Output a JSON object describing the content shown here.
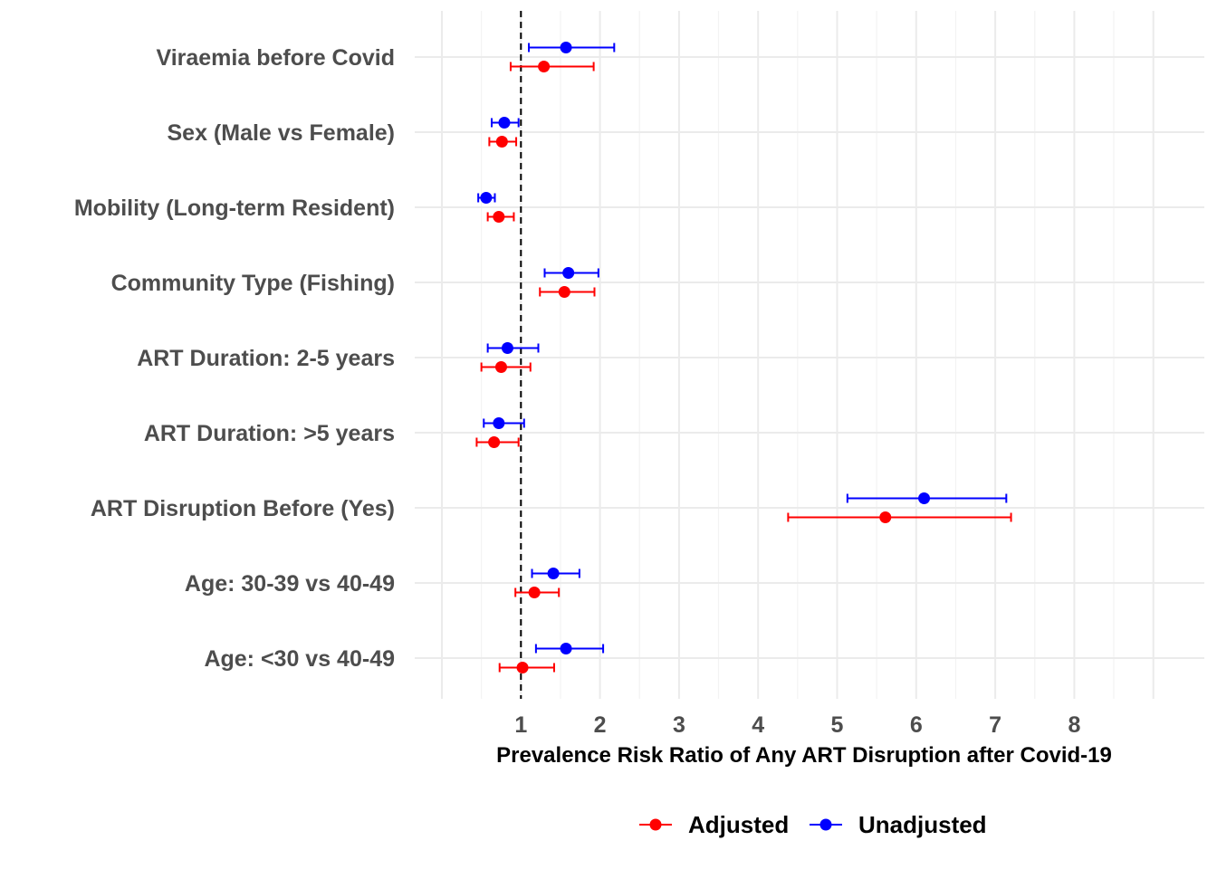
{
  "chart_data": {
    "type": "forest",
    "categories": [
      "Viraemia before Covid",
      "Sex (Male vs Female)",
      "Mobility (Long-term Resident)",
      "Community Type (Fishing)",
      "ART Duration: 2-5 years",
      "ART Duration: >5 years",
      "ART Disruption Before (Yes)",
      "Age: 30-39 vs 40-49",
      "Age: <30 vs 40-49"
    ],
    "series": [
      {
        "name": "Adjusted",
        "color": "#ff0000",
        "estimates": [
          1.29,
          0.76,
          0.72,
          1.55,
          0.75,
          0.66,
          5.61,
          1.17,
          1.02
        ],
        "lower": [
          0.87,
          0.6,
          0.58,
          1.24,
          0.5,
          0.44,
          4.38,
          0.93,
          0.73
        ],
        "upper": [
          1.92,
          0.94,
          0.91,
          1.93,
          1.12,
          0.97,
          7.2,
          1.48,
          1.42
        ]
      },
      {
        "name": "Unadjusted",
        "color": "#0000ff",
        "estimates": [
          1.57,
          0.79,
          0.56,
          1.6,
          0.83,
          0.72,
          6.1,
          1.41,
          1.57
        ],
        "lower": [
          1.1,
          0.63,
          0.46,
          1.3,
          0.58,
          0.53,
          5.13,
          1.14,
          1.19
        ],
        "upper": [
          2.18,
          0.97,
          0.67,
          1.98,
          1.22,
          1.04,
          7.14,
          1.74,
          2.04
        ]
      }
    ],
    "reference_line": 1,
    "xlabel": "Prevalence Risk Ratio of Any ART Disruption after Covid-19",
    "ylabel": "",
    "xlim": [
      0,
      8.65
    ],
    "xticks": [
      "1",
      "2",
      "3",
      "4",
      "5",
      "6",
      "7",
      "8"
    ],
    "grid": true,
    "legend": "bottom"
  }
}
